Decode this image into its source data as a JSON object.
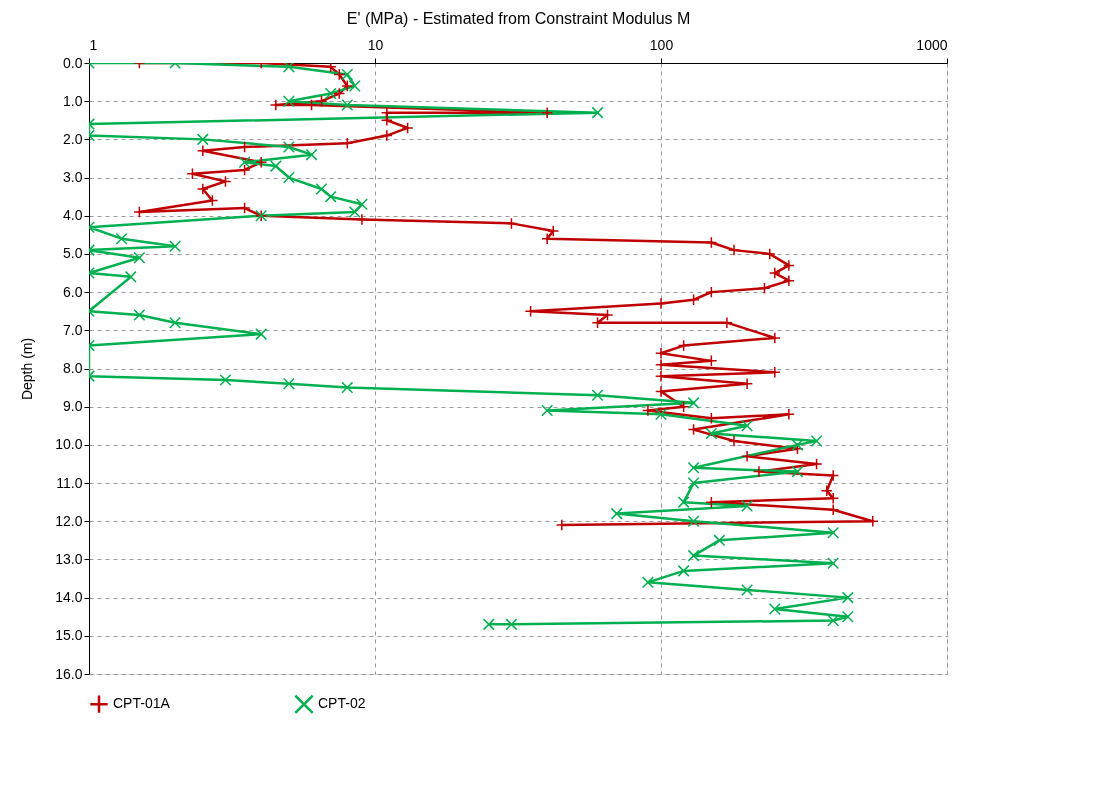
{
  "chart_data": {
    "type": "line",
    "xlabel": "E' (MPa) - Estimated from Constraint Modulus M",
    "ylabel": "Depth (m)",
    "xlim": [
      1,
      1000
    ],
    "xticks": [
      1,
      10,
      100,
      {
        "value": 1000,
        "label": "1000"
      }
    ],
    "log": "x",
    "ylim": [
      16,
      0
    ],
    "yticks": [
      {
        "value": 0,
        "label": "0.0"
      },
      {
        "value": 1,
        "label": "1.0"
      },
      {
        "value": 2,
        "label": "2.0"
      },
      {
        "value": 3,
        "label": "3.0"
      },
      {
        "value": 4,
        "label": "4.0"
      },
      {
        "value": 5,
        "label": "5.0"
      },
      {
        "value": 6,
        "label": "6.0"
      },
      {
        "value": 7,
        "label": "7.0"
      },
      {
        "value": 8,
        "label": "8.0"
      },
      {
        "value": 9,
        "label": "9.0"
      },
      {
        "value": 10,
        "label": "10.0"
      },
      {
        "value": 11,
        "label": "11.0"
      },
      {
        "value": 12,
        "label": "12.0"
      },
      {
        "value": 13,
        "label": "13.0"
      },
      {
        "value": 14,
        "label": "14.0"
      },
      {
        "value": 15,
        "label": "15.0"
      },
      {
        "value": 16,
        "label": "16.0"
      }
    ],
    "grid": true,
    "legend": "bottom",
    "line_style": "solid",
    "series": [
      {
        "name": "CPT-01A",
        "color": "#c00000",
        "marker": "cross",
        "x": [
          1.5,
          4,
          7,
          7.5,
          8,
          7.5,
          6.5,
          4.5,
          6,
          40,
          11,
          11,
          13,
          11,
          8,
          3.5,
          2.5,
          4,
          3.5,
          2.3,
          3,
          2.5,
          2.7,
          1.5,
          3.5,
          4,
          9,
          30,
          42,
          40,
          150,
          180,
          240,
          280,
          250,
          280,
          230,
          150,
          130,
          100,
          35,
          65,
          60,
          170,
          250,
          120,
          100,
          150,
          100,
          250,
          100,
          200,
          100,
          120,
          90,
          150,
          280,
          130,
          180,
          300,
          200,
          350,
          220,
          400,
          380,
          400,
          150,
          400,
          550,
          45
        ],
        "values": [
          0.0,
          0.0,
          0.1,
          0.3,
          0.6,
          0.8,
          1.0,
          1.1,
          1.1,
          1.3,
          1.3,
          1.5,
          1.7,
          1.9,
          2.1,
          2.2,
          2.3,
          2.6,
          2.8,
          2.9,
          3.1,
          3.3,
          3.6,
          3.9,
          3.8,
          4.0,
          4.1,
          4.2,
          4.4,
          4.6,
          4.7,
          4.9,
          5.0,
          5.3,
          5.5,
          5.7,
          5.9,
          6.0,
          6.2,
          6.3,
          6.5,
          6.6,
          6.8,
          6.8,
          7.2,
          7.4,
          7.6,
          7.8,
          7.9,
          8.1,
          8.2,
          8.4,
          8.6,
          9.0,
          9.1,
          9.3,
          9.2,
          9.6,
          9.9,
          10.1,
          10.3,
          10.5,
          10.7,
          10.8,
          11.2,
          11.4,
          11.5,
          11.7,
          12.0,
          12.1
        ]
      },
      {
        "name": "CPT-02",
        "color": "#00b050",
        "marker": "x",
        "x": [
          1,
          2,
          5,
          8,
          8.5,
          7,
          5,
          8,
          60,
          1,
          1,
          2.5,
          5,
          6,
          3.5,
          4.5,
          5,
          6.5,
          7,
          9,
          8.5,
          4,
          1,
          1.3,
          2,
          1,
          1.5,
          1,
          1.4,
          1,
          1.5,
          2,
          4,
          1,
          1,
          3,
          5,
          8,
          60,
          130,
          40,
          100,
          200,
          150,
          350,
          300,
          130,
          300,
          130,
          120,
          200,
          70,
          130,
          400,
          160,
          130,
          400,
          120,
          90,
          200,
          450,
          250,
          450,
          400,
          30,
          25
        ],
        "values": [
          0.0,
          0.0,
          0.1,
          0.3,
          0.6,
          0.8,
          1.0,
          1.1,
          1.3,
          1.6,
          1.9,
          2.0,
          2.2,
          2.4,
          2.6,
          2.7,
          3.0,
          3.3,
          3.5,
          3.7,
          3.9,
          4.0,
          4.3,
          4.6,
          4.8,
          4.9,
          5.1,
          5.5,
          5.6,
          6.5,
          6.6,
          6.8,
          7.1,
          7.4,
          8.2,
          8.3,
          8.4,
          8.5,
          8.7,
          8.9,
          9.1,
          9.2,
          9.5,
          9.7,
          9.9,
          10.0,
          10.6,
          10.7,
          11.0,
          11.5,
          11.6,
          11.8,
          12.0,
          12.3,
          12.5,
          12.9,
          13.1,
          13.3,
          13.6,
          13.8,
          14.0,
          14.3,
          14.5,
          14.6,
          14.7,
          14.7
        ]
      }
    ]
  }
}
